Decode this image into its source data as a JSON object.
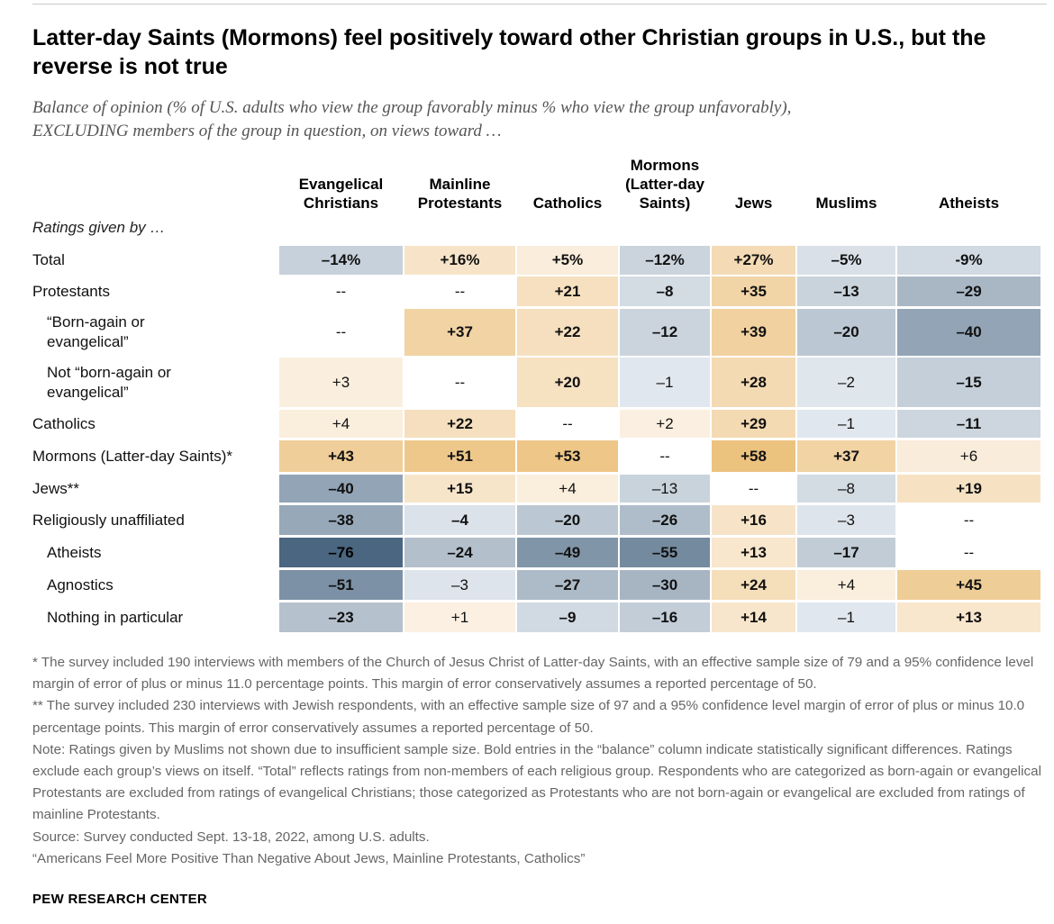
{
  "title": "Latter-day Saints (Mormons) feel positively toward other Christian groups in U.S., but the reverse is not true",
  "subtitle_line1": "Balance of opinion (% of U.S. adults who view the group favorably minus % who view the group unfavorably),",
  "subtitle_line2": "EXCLUDING members of the group in question, on views toward …",
  "ratings_label": "Ratings given by …",
  "chart_data": {
    "type": "table",
    "title": "Latter-day Saints (Mormons) feel positively toward other Christian groups in U.S., but the reverse is not true",
    "columns": [
      {
        "lines": [
          "Evangelical",
          "Christians"
        ]
      },
      {
        "lines": [
          "Mainline",
          "Protestants"
        ]
      },
      {
        "lines": [
          "Catholics"
        ]
      },
      {
        "lines": [
          "Mormons",
          "(Latter-day",
          "Saints)"
        ]
      },
      {
        "lines": [
          "Jews"
        ]
      },
      {
        "lines": [
          "Muslims"
        ]
      },
      {
        "lines": [
          "Atheists"
        ]
      }
    ],
    "rows": [
      {
        "label": [
          "Total"
        ],
        "indent": 0,
        "cells": [
          {
            "text": "–14%",
            "value": -14,
            "bold": true
          },
          {
            "text": "+16%",
            "value": 16,
            "bold": true
          },
          {
            "text": "+5%",
            "value": 5,
            "bold": true
          },
          {
            "text": "–12%",
            "value": -12,
            "bold": true
          },
          {
            "text": "+27%",
            "value": 27,
            "bold": true
          },
          {
            "text": "–5%",
            "value": -5,
            "bold": true
          },
          {
            "text": "-9%",
            "value": -9,
            "bold": true
          }
        ]
      },
      {
        "label": [
          "Protestants"
        ],
        "indent": 0,
        "cells": [
          {
            "text": "--",
            "value": null,
            "bold": false
          },
          {
            "text": "--",
            "value": null,
            "bold": false
          },
          {
            "text": "+21",
            "value": 21,
            "bold": true
          },
          {
            "text": "–8",
            "value": -8,
            "bold": true
          },
          {
            "text": "+35",
            "value": 35,
            "bold": true
          },
          {
            "text": "–13",
            "value": -13,
            "bold": true
          },
          {
            "text": "–29",
            "value": -29,
            "bold": true
          }
        ]
      },
      {
        "label": [
          "“Born-again or",
          "evangelical”"
        ],
        "indent": 1,
        "cells": [
          {
            "text": "--",
            "value": null,
            "bold": false
          },
          {
            "text": "+37",
            "value": 37,
            "bold": true
          },
          {
            "text": "+22",
            "value": 22,
            "bold": true
          },
          {
            "text": "–12",
            "value": -12,
            "bold": true
          },
          {
            "text": "+39",
            "value": 39,
            "bold": true
          },
          {
            "text": "–20",
            "value": -20,
            "bold": true
          },
          {
            "text": "–40",
            "value": -40,
            "bold": true
          }
        ]
      },
      {
        "label": [
          "Not “born-again or",
          "evangelical”"
        ],
        "indent": 1,
        "cells": [
          {
            "text": "+3",
            "value": 3,
            "bold": false
          },
          {
            "text": "--",
            "value": null,
            "bold": false
          },
          {
            "text": "+20",
            "value": 20,
            "bold": true
          },
          {
            "text": "–1",
            "value": -1,
            "bold": false
          },
          {
            "text": "+28",
            "value": 28,
            "bold": true
          },
          {
            "text": "–2",
            "value": -2,
            "bold": false
          },
          {
            "text": "–15",
            "value": -15,
            "bold": true
          }
        ]
      },
      {
        "label": [
          "Catholics"
        ],
        "indent": 0,
        "cells": [
          {
            "text": "+4",
            "value": 4,
            "bold": false
          },
          {
            "text": "+22",
            "value": 22,
            "bold": true
          },
          {
            "text": "--",
            "value": null,
            "bold": false
          },
          {
            "text": "+2",
            "value": 2,
            "bold": false
          },
          {
            "text": "+29",
            "value": 29,
            "bold": true
          },
          {
            "text": "–1",
            "value": -1,
            "bold": false
          },
          {
            "text": "–11",
            "value": -11,
            "bold": true
          }
        ]
      },
      {
        "label": [
          "Mormons (Latter-day Saints)*"
        ],
        "indent": 0,
        "cells": [
          {
            "text": "+43",
            "value": 43,
            "bold": true
          },
          {
            "text": "+51",
            "value": 51,
            "bold": true
          },
          {
            "text": "+53",
            "value": 53,
            "bold": true
          },
          {
            "text": "--",
            "value": null,
            "bold": false
          },
          {
            "text": "+58",
            "value": 58,
            "bold": true
          },
          {
            "text": "+37",
            "value": 37,
            "bold": true
          },
          {
            "text": "+6",
            "value": 6,
            "bold": false
          }
        ]
      },
      {
        "label": [
          "Jews**"
        ],
        "indent": 0,
        "cells": [
          {
            "text": "–40",
            "value": -40,
            "bold": true
          },
          {
            "text": "+15",
            "value": 15,
            "bold": true
          },
          {
            "text": "+4",
            "value": 4,
            "bold": false
          },
          {
            "text": "–13",
            "value": -13,
            "bold": false
          },
          {
            "text": "--",
            "value": null,
            "bold": false
          },
          {
            "text": "–8",
            "value": -8,
            "bold": false
          },
          {
            "text": "+19",
            "value": 19,
            "bold": true
          }
        ]
      },
      {
        "label": [
          "Religiously unaffiliated"
        ],
        "indent": 0,
        "cells": [
          {
            "text": "–38",
            "value": -38,
            "bold": true
          },
          {
            "text": "–4",
            "value": -4,
            "bold": true
          },
          {
            "text": "–20",
            "value": -20,
            "bold": true
          },
          {
            "text": "–26",
            "value": -26,
            "bold": true
          },
          {
            "text": "+16",
            "value": 16,
            "bold": true
          },
          {
            "text": "–3",
            "value": -3,
            "bold": false
          },
          {
            "text": "--",
            "value": null,
            "bold": false
          }
        ]
      },
      {
        "label": [
          "Atheists"
        ],
        "indent": 1,
        "cells": [
          {
            "text": "–76",
            "value": -76,
            "bold": true
          },
          {
            "text": "–24",
            "value": -24,
            "bold": true
          },
          {
            "text": "–49",
            "value": -49,
            "bold": true
          },
          {
            "text": "–55",
            "value": -55,
            "bold": true
          },
          {
            "text": "+13",
            "value": 13,
            "bold": true
          },
          {
            "text": "–17",
            "value": -17,
            "bold": true
          },
          {
            "text": "--",
            "value": null,
            "bold": false
          }
        ]
      },
      {
        "label": [
          "Agnostics"
        ],
        "indent": 1,
        "cells": [
          {
            "text": "–51",
            "value": -51,
            "bold": true
          },
          {
            "text": "–3",
            "value": -3,
            "bold": false
          },
          {
            "text": "–27",
            "value": -27,
            "bold": true
          },
          {
            "text": "–30",
            "value": -30,
            "bold": true
          },
          {
            "text": "+24",
            "value": 24,
            "bold": true
          },
          {
            "text": "+4",
            "value": 4,
            "bold": false
          },
          {
            "text": "+45",
            "value": 45,
            "bold": true
          }
        ]
      },
      {
        "label": [
          "Nothing in particular"
        ],
        "indent": 1,
        "cells": [
          {
            "text": "–23",
            "value": -23,
            "bold": true
          },
          {
            "text": "+1",
            "value": 1,
            "bold": false
          },
          {
            "text": "–9",
            "value": -9,
            "bold": true
          },
          {
            "text": "–16",
            "value": -16,
            "bold": true
          },
          {
            "text": "+14",
            "value": 14,
            "bold": true
          },
          {
            "text": "–1",
            "value": -1,
            "bold": false
          },
          {
            "text": "+13",
            "value": 13,
            "bold": true
          }
        ]
      }
    ]
  },
  "notes": [
    "* The survey included 190 interviews with members of the Church of Jesus Christ of Latter-day Saints, with an effective sample size of 79 and a 95% confidence level margin of error of plus or minus 11.0 percentage points. This margin of error conservatively assumes a reported percentage of 50.",
    "** The survey included 230 interviews with Jewish respondents, with an effective sample size of 97 and a 95% confidence level margin of error of plus or minus 10.0 percentage points. This margin of error conservatively assumes a reported percentage of 50.",
    "Note: Ratings given by Muslims not shown due to insufficient sample size. Bold entries in the “balance” column indicate statistically significant differences. Ratings exclude each group’s views on itself. “Total” reflects ratings from non-members of each religious group. Respondents who are categorized as born-again or evangelical Protestants are excluded from ratings of evangelical Christians; those categorized as Protestants who are not born-again or evangelical are excluded from ratings of mainline Protestants.",
    "Source: Survey conducted Sept. 13-18, 2022, among U.S. adults.",
    "“Americans Feel More Positive Than Negative About Jews, Mainline Protestants, Catholics”"
  ],
  "source_name": "PEW RESEARCH CENTER"
}
